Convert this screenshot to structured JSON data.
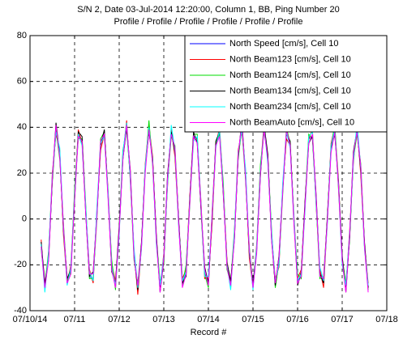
{
  "chart_data": {
    "type": "line",
    "title": "S/N 2, Date 03-Jul-2014 12:20:00, Column 1, BB, Ping Number 20",
    "subtitle": "Profile / Profile / Profile / Profile / Profile / Profile",
    "x_label": "Record #",
    "xlim": [
      0,
      8
    ],
    "xticks": [
      {
        "value": 0,
        "label": "07/10/14"
      },
      {
        "value": 1,
        "label": "07/11"
      },
      {
        "value": 2,
        "label": "07/12"
      },
      {
        "value": 3,
        "label": "07/13"
      },
      {
        "value": 4,
        "label": "07/14"
      },
      {
        "value": 5,
        "label": "07/15"
      },
      {
        "value": 6,
        "label": "07/16"
      },
      {
        "value": 7,
        "label": "07/17"
      },
      {
        "value": 8,
        "label": "07/18"
      }
    ],
    "ylim": [
      -40,
      80
    ],
    "yticks": [
      -40,
      -20,
      0,
      20,
      40,
      60,
      80
    ],
    "grid": true,
    "legend": "upper right",
    "x": [
      0.25,
      0.333,
      0.417,
      0.5,
      0.583,
      0.667,
      0.75,
      0.833,
      0.917,
      1,
      1.083,
      1.167,
      1.25,
      1.333,
      1.417,
      1.5,
      1.583,
      1.667,
      1.75,
      1.833,
      1.917,
      2,
      2.083,
      2.167,
      2.25,
      2.333,
      2.417,
      2.5,
      2.583,
      2.667,
      2.75,
      2.833,
      2.917,
      3,
      3.083,
      3.167,
      3.25,
      3.333,
      3.417,
      3.5,
      3.583,
      3.667,
      3.75,
      3.833,
      3.917,
      4,
      4.083,
      4.167,
      4.25,
      4.333,
      4.417,
      4.5,
      4.583,
      4.667,
      4.75,
      4.833,
      4.917,
      5,
      5.083,
      5.167,
      5.25,
      5.333,
      5.417,
      5.5,
      5.583,
      5.667,
      5.75,
      5.833,
      5.917,
      6,
      6.083,
      6.167,
      6.25,
      6.333,
      6.417,
      6.5,
      6.583,
      6.667,
      6.75,
      6.833,
      6.917,
      7,
      7.083,
      7.167,
      7.25,
      7.333,
      7.417,
      7.5,
      7.583
    ],
    "series": [
      {
        "name": "North Speed [cm/s], Cell 10",
        "color": "#0000ff",
        "values": [
          -11,
          -30,
          -16,
          17,
          39,
          29,
          -4,
          -28,
          -22,
          10,
          37,
          34,
          4,
          -25,
          -26,
          3,
          33,
          37,
          11,
          -21,
          -29,
          -5,
          28,
          40,
          18,
          -15,
          -30,
          -12,
          22,
          40,
          25,
          -9,
          -30,
          -18,
          16,
          39,
          30,
          -2,
          -28,
          -23,
          8,
          36,
          35,
          5,
          -24,
          -27,
          1,
          32,
          38,
          13,
          -20,
          -29,
          -7,
          27,
          40,
          20,
          -14,
          -30,
          -13,
          21,
          40,
          26,
          -7,
          -29,
          -19,
          14,
          38,
          32,
          0,
          -27,
          -24,
          6,
          35,
          36,
          7,
          -23,
          -27,
          -1,
          31,
          39,
          15,
          -18,
          -30,
          -8,
          26,
          40,
          22,
          -12,
          -30
        ]
      },
      {
        "name": "North Beam123 [cm/s], Cell 10",
        "color": "#ff0000",
        "values": [
          -9,
          -31,
          -16,
          20,
          37,
          30,
          -7,
          -28,
          -20,
          11,
          39,
          33,
          4,
          -22,
          -28,
          4,
          30,
          37,
          13,
          -20,
          -27,
          -6,
          28,
          43,
          16,
          -14,
          -33,
          -12,
          24,
          41,
          27,
          -10,
          -30,
          -15,
          14,
          40,
          27,
          -2,
          -26,
          -22,
          10,
          35,
          35,
          8,
          -26,
          -26,
          -2,
          32,
          40,
          14,
          -18,
          -30,
          -7,
          30,
          38,
          21,
          -17,
          -30,
          -11,
          22,
          42,
          25,
          -7,
          -26,
          -21,
          15,
          35,
          32,
          2,
          -26,
          -22,
          5,
          35,
          39,
          5,
          -22,
          -30,
          -1,
          33,
          40,
          17,
          -19,
          -30,
          -5,
          24,
          41,
          19,
          -12,
          -28
        ]
      },
      {
        "name": "North Beam124 [cm/s], Cell 10",
        "color": "#00dd00",
        "values": [
          -13,
          -29,
          -14,
          16,
          39,
          26,
          -2,
          -27,
          -23,
          13,
          35,
          35,
          6,
          -26,
          -26,
          0,
          35,
          38,
          10,
          -18,
          -31,
          -4,
          30,
          39,
          18,
          -18,
          -28,
          -11,
          21,
          43,
          23,
          -8,
          -28,
          -19,
          16,
          36,
          32,
          -1,
          -29,
          -20,
          6,
          37,
          37,
          4,
          -24,
          -30,
          3,
          33,
          37,
          16,
          -22,
          -28,
          -5,
          26,
          40,
          17,
          -12,
          -29,
          -14,
          24,
          38,
          27,
          -5,
          -30,
          -19,
          11,
          40,
          33,
          -1,
          -24,
          -26,
          7,
          37,
          35,
          7,
          -26,
          -25,
          0,
          30,
          42,
          13,
          -17,
          -28,
          -9,
          26,
          37,
          24,
          -11,
          -31
        ]
      },
      {
        "name": "North Beam134 [cm/s], Cell 10",
        "color": "#000000",
        "values": [
          -10,
          -28,
          -18,
          17,
          42,
          28,
          -5,
          -26,
          -22,
          8,
          38,
          36,
          2,
          -25,
          -23,
          2,
          32,
          39,
          11,
          -23,
          -28,
          -3,
          26,
          40,
          21,
          -16,
          -31,
          -10,
          22,
          38,
          26,
          -7,
          -32,
          -18,
          19,
          38,
          29,
          0,
          -28,
          -25,
          9,
          38,
          33,
          5,
          -21,
          -28,
          0,
          34,
          38,
          11,
          -19,
          -27,
          -9,
          27,
          43,
          19,
          -15,
          -28,
          -13,
          19,
          41,
          28,
          -9,
          -29,
          -16,
          13,
          37,
          34,
          0,
          -29,
          -23,
          8,
          33,
          36,
          10,
          -24,
          -28,
          1,
          31,
          37,
          16,
          -16,
          -32,
          -8,
          29,
          39,
          21,
          -10,
          -30
        ]
      },
      {
        "name": "North Beam234 [cm/s], Cell 10",
        "color": "#00ffff",
        "values": [
          -11,
          -32,
          -15,
          19,
          38,
          31,
          -4,
          -29,
          -21,
          10,
          37,
          32,
          5,
          -23,
          -27,
          5,
          33,
          36,
          12,
          -21,
          -29,
          -7,
          29,
          42,
          17,
          -13,
          -30,
          -13,
          23,
          40,
          25,
          -11,
          -29,
          -16,
          15,
          41,
          30,
          -3,
          -27,
          -23,
          8,
          34,
          36,
          7,
          -25,
          -25,
          1,
          31,
          39,
          13,
          -20,
          -31,
          -6,
          29,
          39,
          22,
          -14,
          -31,
          -12,
          21,
          40,
          24,
          -6,
          -27,
          -20,
          16,
          38,
          31,
          1,
          -27,
          -24,
          4,
          36,
          38,
          6,
          -21,
          -27,
          -2,
          32,
          39,
          15,
          -20,
          -29,
          -6,
          25,
          42,
          22,
          -13,
          -29
        ]
      },
      {
        "name": "North BeamAuto [cm/s], Cell 10",
        "color": "#ff00ff",
        "values": [
          -12,
          -30,
          -18,
          18,
          41,
          27,
          -3,
          -28,
          -24,
          9,
          36,
          34,
          2,
          -24,
          -24,
          1,
          34,
          37,
          9,
          -22,
          -30,
          -5,
          26,
          41,
          20,
          -17,
          -29,
          -12,
          20,
          39,
          24,
          -9,
          -32,
          -17,
          18,
          37,
          31,
          -2,
          -30,
          -24,
          7,
          36,
          33,
          6,
          -22,
          -29,
          2,
          32,
          36,
          12,
          -21,
          -29,
          -9,
          28,
          42,
          18,
          -13,
          -30,
          -15,
          20,
          39,
          26,
          -9,
          -28,
          -17,
          12,
          39,
          32,
          -2,
          -28,
          -25,
          6,
          33,
          37,
          9,
          -25,
          -26,
          -1,
          29,
          38,
          14,
          -18,
          -32,
          -7,
          28,
          38,
          23,
          -12,
          -32
        ]
      }
    ]
  }
}
